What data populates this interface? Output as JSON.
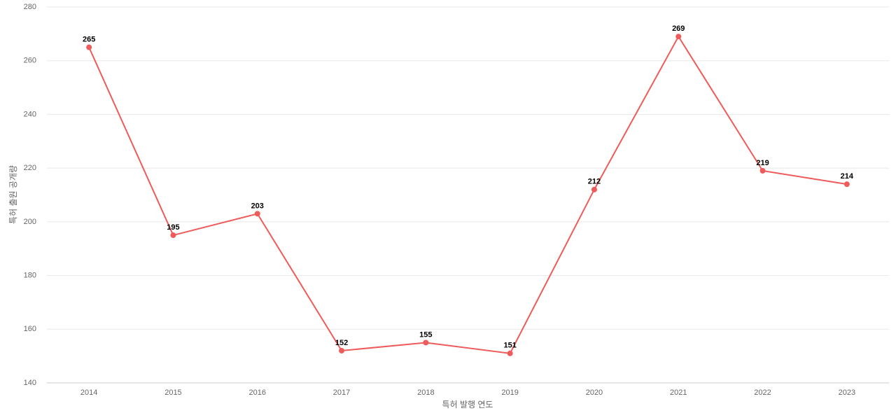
{
  "chart_data": {
    "type": "line",
    "x_label": "특허 발행 연도",
    "y_label": "특허 출원 공개량",
    "categories": [
      "2014",
      "2015",
      "2016",
      "2017",
      "2018",
      "2019",
      "2020",
      "2021",
      "2022",
      "2023"
    ],
    "series": [
      {
        "name": "특허 출원 공개량",
        "color": "#ef5a5a",
        "values": [
          265,
          195,
          203,
          152,
          155,
          151,
          212,
          269,
          219,
          214
        ]
      }
    ],
    "ylim": [
      140,
      280
    ],
    "yticks": [
      140,
      160,
      180,
      200,
      220,
      240,
      260,
      280
    ],
    "grid": true,
    "legend": false
  }
}
